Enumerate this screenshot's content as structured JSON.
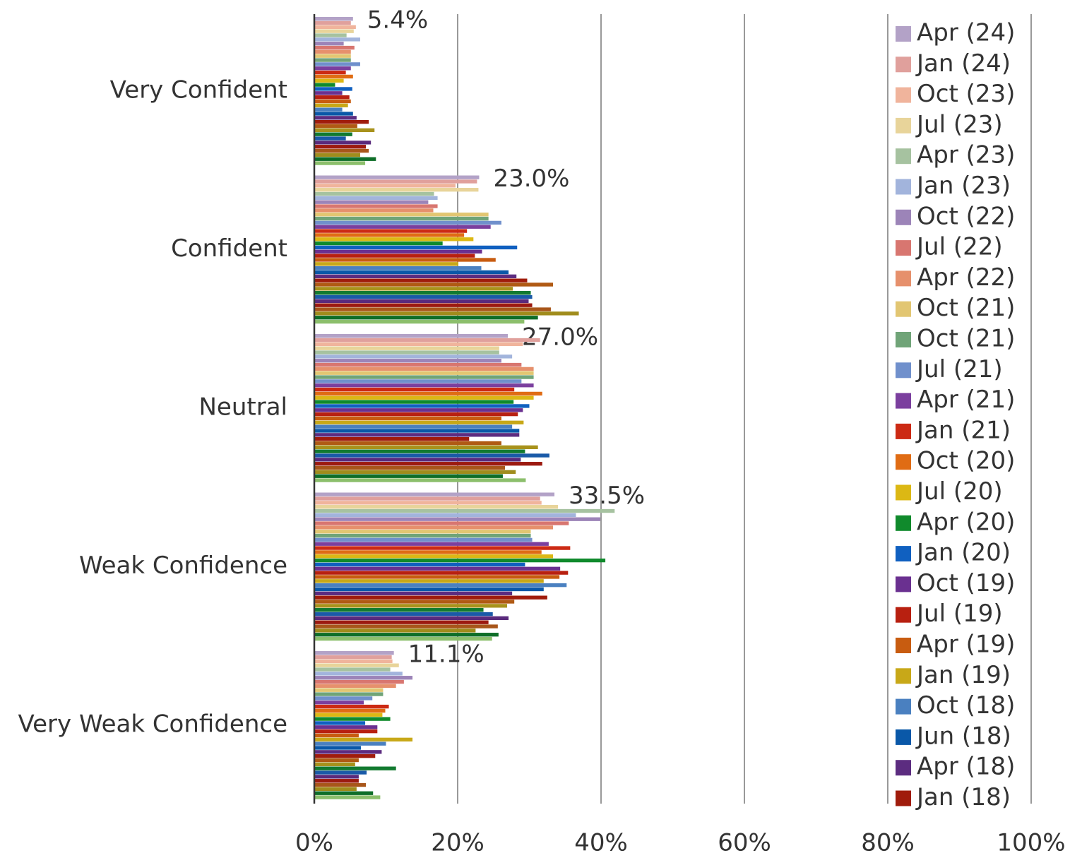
{
  "chart_data": {
    "type": "hbar",
    "categories": [
      "Very Confident",
      "Confident",
      "Neutral",
      "Weak Confidence",
      "Very Weak Confidence"
    ],
    "xlim": [
      0,
      100
    ],
    "xticks": [
      {
        "value": 0,
        "label": "0%"
      },
      {
        "value": 20,
        "label": "20%"
      },
      {
        "value": 40,
        "label": "40%"
      },
      {
        "value": 60,
        "label": "60%"
      },
      {
        "value": 80,
        "label": "80%"
      },
      {
        "value": 100,
        "label": "100%"
      }
    ],
    "grid": true,
    "legend": "right",
    "series": [
      {
        "name": "Apr (24)",
        "color": "#b3a2c7",
        "values": [
          5.4,
          23.0,
          27.0,
          33.5,
          11.1
        ],
        "value_labels": [
          "5.4%",
          "23.0%",
          "27.0%",
          "33.5%",
          "11.1%"
        ]
      },
      {
        "name": "Jan (24)",
        "color": "#e0a09c",
        "values": [
          5.1,
          22.7,
          31.5,
          31.5,
          10.8
        ]
      },
      {
        "name": "Oct (23)",
        "color": "#f0b49c",
        "values": [
          5.8,
          19.7,
          29.1,
          31.7,
          10.9
        ]
      },
      {
        "name": "Jul (23)",
        "color": "#e8d49a",
        "values": [
          5.5,
          22.9,
          25.8,
          34.0,
          11.8
        ]
      },
      {
        "name": "Apr (23)",
        "color": "#a6c2a0",
        "values": [
          4.5,
          16.7,
          25.8,
          41.9,
          10.6
        ]
      },
      {
        "name": "Jan (23)",
        "color": "#a2b4dc",
        "values": [
          6.4,
          17.2,
          27.6,
          36.5,
          12.3
        ]
      },
      {
        "name": "Oct (22)",
        "color": "#9c84b8",
        "values": [
          4.1,
          15.9,
          26.1,
          39.9,
          13.7
        ]
      },
      {
        "name": "Jul (22)",
        "color": "#d87670",
        "values": [
          5.6,
          17.2,
          28.9,
          35.5,
          12.5
        ]
      },
      {
        "name": "Apr (22)",
        "color": "#e6906c",
        "values": [
          5.1,
          16.6,
          30.6,
          33.3,
          11.4
        ]
      },
      {
        "name": "Oct (21)",
        "color": "#e2c672",
        "values": [
          5.1,
          24.3,
          30.6,
          30.2,
          9.6
        ]
      },
      {
        "name": "Oct (21)",
        "color": "#70a478",
        "values": [
          5.1,
          24.3,
          30.6,
          30.2,
          9.6
        ]
      },
      {
        "name": "Jul (21)",
        "color": "#7090cc",
        "values": [
          6.4,
          26.1,
          28.9,
          30.4,
          8.1
        ]
      },
      {
        "name": "Apr (21)",
        "color": "#7b3f9e",
        "values": [
          5.1,
          24.6,
          30.6,
          32.7,
          6.9
        ]
      },
      {
        "name": "Jan (21)",
        "color": "#cc2a14",
        "values": [
          4.4,
          21.3,
          27.9,
          35.7,
          10.4
        ]
      },
      {
        "name": "Oct (20)",
        "color": "#e06c14",
        "values": [
          5.4,
          20.9,
          31.8,
          31.7,
          9.9
        ]
      },
      {
        "name": "Jul (20)",
        "color": "#dcb814",
        "values": [
          4.1,
          22.2,
          30.6,
          33.3,
          9.5
        ]
      },
      {
        "name": "Apr (20)",
        "color": "#108a2c",
        "values": [
          2.9,
          17.9,
          27.8,
          40.6,
          10.6
        ]
      },
      {
        "name": "Jan (20)",
        "color": "#1060c0",
        "values": [
          5.3,
          28.3,
          30.0,
          29.4,
          7.1
        ]
      },
      {
        "name": "Oct (19)",
        "color": "#6a3090",
        "values": [
          3.9,
          23.4,
          29.1,
          34.3,
          8.8
        ]
      },
      {
        "name": "Jul (19)",
        "color": "#b82010",
        "values": [
          4.9,
          22.4,
          28.4,
          35.4,
          8.8
        ]
      },
      {
        "name": "Apr (19)",
        "color": "#c85c10",
        "values": [
          5.1,
          25.3,
          26.1,
          34.2,
          6.2
        ]
      },
      {
        "name": "Jan (19)",
        "color": "#c8a818",
        "values": [
          4.7,
          20.1,
          29.2,
          32.0,
          13.7
        ]
      },
      {
        "name": "Oct (18)",
        "color": "#4a80c0",
        "values": [
          3.9,
          23.3,
          27.6,
          35.2,
          10.0
        ]
      },
      {
        "name": "Jun (18)",
        "color": "#0a58a8",
        "values": [
          5.4,
          27.1,
          28.6,
          32.0,
          6.5
        ]
      },
      {
        "name": "Apr (18)",
        "color": "#5c2c80",
        "values": [
          5.9,
          28.2,
          28.6,
          27.6,
          9.4
        ]
      },
      {
        "name": "Jan (18)",
        "color": "#a01c0c",
        "values": [
          7.6,
          29.7,
          21.6,
          32.5,
          8.5
        ]
      },
      {
        "color": "#b05a14",
        "values": [
          6.0,
          33.3,
          26.1,
          27.9,
          6.2
        ]
      },
      {
        "color": "#a8921c",
        "values": [
          8.4,
          27.7,
          31.2,
          26.9,
          5.7
        ]
      },
      {
        "color": "#127a30",
        "values": [
          5.3,
          30.2,
          29.4,
          23.6,
          11.4
        ]
      },
      {
        "color": "#1a5aa8",
        "values": [
          4.4,
          30.4,
          32.8,
          24.9,
          7.3
        ]
      },
      {
        "color": "#5a2a7c",
        "values": [
          7.9,
          29.9,
          28.8,
          27.1,
          6.2
        ]
      },
      {
        "color": "#9c1a10",
        "values": [
          7.2,
          30.4,
          31.8,
          24.3,
          6.2
        ]
      },
      {
        "color": "#a8561a",
        "values": [
          7.6,
          33.0,
          26.6,
          25.6,
          7.2
        ]
      },
      {
        "color": "#a08c1c",
        "values": [
          6.4,
          36.9,
          28.1,
          22.5,
          5.9
        ]
      },
      {
        "color": "#0e6e28",
        "values": [
          8.6,
          31.2,
          26.3,
          25.7,
          8.2
        ]
      },
      {
        "color": "#8cbf6c",
        "values": [
          7.1,
          29.3,
          29.5,
          24.8,
          9.2
        ]
      }
    ]
  }
}
